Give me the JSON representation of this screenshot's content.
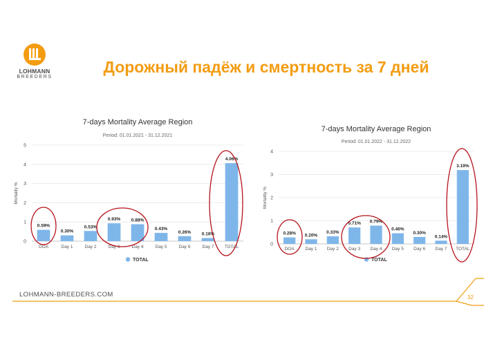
{
  "slide": {
    "title": "Дорожный падёж и смертность за 7 дней",
    "footer_url": "LOHMANN-BREEDERS.COM",
    "page_number": "32",
    "logo_name": "LOHMANN",
    "logo_sub": "BREEDERS",
    "accent_color": "#f39c12"
  },
  "chart_data": [
    {
      "type": "bar",
      "title": "7-days Mortality Average Region",
      "subtitle": "Period: 01.01.2021 - 31.12.2021",
      "ylabel": "Mortality %",
      "ylim": [
        0,
        5
      ],
      "yticks": [
        "0",
        "1",
        "2",
        "3",
        "4",
        "5"
      ],
      "categories": [
        "DOA",
        "Day 1",
        "Day 2",
        "Day 3",
        "Day 4",
        "Day 5",
        "Day 6",
        "Day 7",
        "TOTAL"
      ],
      "values": [
        0.59,
        0.3,
        0.53,
        0.93,
        0.88,
        0.43,
        0.26,
        0.16,
        4.06
      ],
      "data_labels": [
        "0.59%",
        "0.30%",
        "0.53%",
        "0.93%",
        "0.88%",
        "0.43%",
        "0.26%",
        "0.16%",
        "4.06%"
      ],
      "series": [
        {
          "name": "TOTAL",
          "values": [
            0.59,
            0.3,
            0.53,
            0.93,
            0.88,
            0.43,
            0.26,
            0.16,
            4.06
          ]
        }
      ],
      "legend": "bottom-center",
      "grid": true,
      "bar_color": "#7eb6ea",
      "highlight_color": "#b5121b",
      "highlighted_groups": [
        [
          "DOA"
        ],
        [
          "Day 3",
          "Day 4"
        ],
        [
          "TOTAL"
        ]
      ]
    },
    {
      "type": "bar",
      "title": "7-days Mortality Average Region",
      "subtitle": "Period: 01.01.2022 - 31.12.2022",
      "ylabel": "Mortality %",
      "ylim": [
        0,
        4
      ],
      "yticks": [
        "0",
        "1",
        "2",
        "3",
        "4"
      ],
      "categories": [
        "DOA",
        "Day 1",
        "Day 2",
        "Day 3",
        "Day 4",
        "Day 5",
        "Day 6",
        "Day 7",
        "TOTAL"
      ],
      "values": [
        0.28,
        0.2,
        0.33,
        0.71,
        0.79,
        0.46,
        0.3,
        0.14,
        3.19
      ],
      "data_labels": [
        "0.28%",
        "0.20%",
        "0.33%",
        "0.71%",
        "0.79%",
        "0.46%",
        "0.30%",
        "0.14%",
        "3.19%"
      ],
      "series": [
        {
          "name": "TOTAL",
          "values": [
            0.28,
            0.2,
            0.33,
            0.71,
            0.79,
            0.46,
            0.3,
            0.14,
            3.19
          ]
        }
      ],
      "legend": "bottom-center",
      "grid": true,
      "bar_color": "#7eb6ea",
      "highlight_color": "#b5121b",
      "highlighted_groups": [
        [
          "DOA"
        ],
        [
          "Day 3",
          "Day 4"
        ],
        [
          "TOTAL"
        ]
      ]
    }
  ]
}
